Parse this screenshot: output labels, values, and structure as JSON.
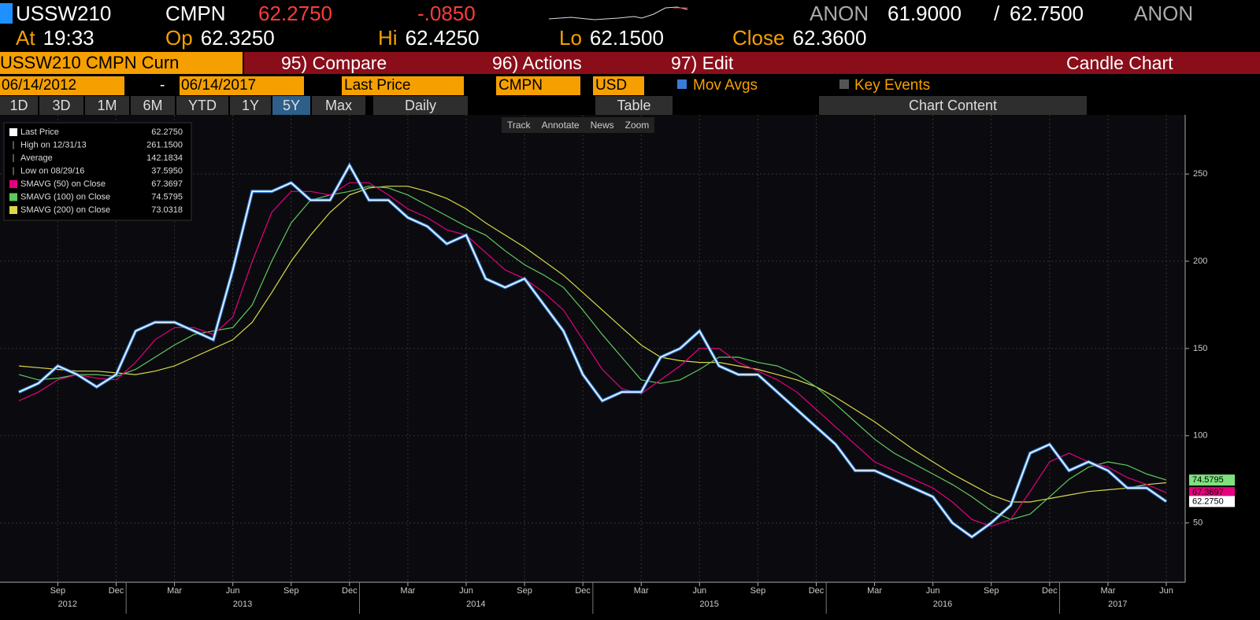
{
  "header": {
    "ticker": "USSW210",
    "source": "CMPN",
    "last": "62.2750",
    "change": "-.0850",
    "bid_source": "ANON",
    "bid": "61.9000",
    "separator": "/",
    "ask": "62.7500",
    "ask_source": "ANON",
    "quote": [
      {
        "label": "At",
        "value": "19:33"
      },
      {
        "label": "Op",
        "value": "62.3250"
      },
      {
        "label": "Hi",
        "value": "62.4250"
      },
      {
        "label": "Lo",
        "value": "62.1500"
      },
      {
        "label": "Close",
        "value": "62.3600"
      }
    ]
  },
  "menu": {
    "security": "USSW210 CMPN Curn",
    "compare": "95) Compare",
    "actions": "96) Actions",
    "edit": "97) Edit",
    "chart_kind": "Candle Chart"
  },
  "controls": {
    "start": "06/14/2012",
    "dash": "-",
    "end": "06/14/2017",
    "field": "Last Price",
    "pricing": "CMPN",
    "currency": "USD",
    "mov_avgs": "Mov Avgs",
    "key_events": "Key Events"
  },
  "periods": {
    "items": [
      "1D",
      "3D",
      "1M",
      "6M",
      "YTD",
      "1Y",
      "5Y",
      "Max"
    ],
    "selected": "5Y",
    "frequency": "Daily",
    "table": "Table",
    "chart_content": "Chart Content"
  },
  "tools": [
    "Track",
    "Annotate",
    "News",
    "Zoom"
  ],
  "chart_data": {
    "type": "line",
    "categories": [
      null,
      null,
      "Sep",
      null,
      null,
      "Dec",
      null,
      null,
      "Mar",
      null,
      null,
      "Jun",
      null,
      null,
      "Sep",
      null,
      null,
      "Dec",
      null,
      null,
      "Mar",
      null,
      null,
      "Jun",
      null,
      null,
      "Sep",
      null,
      null,
      "Dec",
      null,
      null,
      "Mar",
      null,
      null,
      "Jun",
      null,
      null,
      "Sep",
      null,
      null,
      "Dec",
      null,
      null,
      "Mar",
      null,
      null,
      "Jun",
      null,
      null,
      "Sep",
      null,
      null,
      "Dec",
      null,
      null,
      "Mar",
      null,
      null,
      "Jun"
    ],
    "years": [
      "2012",
      "2013",
      "2014",
      "2015",
      "2016",
      "2017"
    ],
    "ylim": [
      16,
      283
    ],
    "yticks": [
      50,
      100,
      150,
      200,
      250
    ],
    "grid": true,
    "series": [
      {
        "name": "Last Price",
        "color": "#ffffff",
        "last_label": "62.2750",
        "values": [
          125,
          130,
          140,
          135,
          128,
          135,
          160,
          165,
          165,
          160,
          155,
          195,
          240,
          240,
          245,
          235,
          235,
          255,
          235,
          235,
          225,
          220,
          210,
          215,
          190,
          185,
          190,
          175,
          160,
          135,
          120,
          125,
          125,
          145,
          150,
          160,
          140,
          135,
          135,
          125,
          115,
          105,
          95,
          80,
          80,
          75,
          70,
          65,
          50,
          42,
          50,
          60,
          90,
          95,
          80,
          85,
          80,
          70,
          70,
          62.275
        ]
      },
      {
        "name": "SMAVG (50) on Close",
        "color": "#e6007e",
        "last_label": "67.3697",
        "values": [
          120,
          125,
          132,
          135,
          133,
          132,
          142,
          155,
          162,
          162,
          158,
          168,
          200,
          228,
          240,
          240,
          238,
          245,
          245,
          238,
          230,
          225,
          218,
          215,
          205,
          195,
          190,
          182,
          172,
          155,
          138,
          127,
          124,
          132,
          140,
          150,
          150,
          142,
          137,
          132,
          125,
          115,
          105,
          95,
          85,
          80,
          75,
          70,
          62,
          52,
          48,
          52,
          68,
          85,
          90,
          85,
          82,
          76,
          72,
          67.3697
        ]
      },
      {
        "name": "SMAVG (100) on Close",
        "color": "#5fc85f",
        "last_label": "74.5795",
        "values": [
          135,
          132,
          133,
          135,
          135,
          134,
          138,
          145,
          152,
          158,
          160,
          162,
          175,
          200,
          222,
          235,
          238,
          240,
          243,
          242,
          238,
          232,
          226,
          220,
          215,
          206,
          198,
          192,
          185,
          172,
          158,
          145,
          132,
          130,
          132,
          138,
          145,
          145,
          142,
          140,
          135,
          128,
          118,
          108,
          98,
          90,
          84,
          78,
          72,
          65,
          57,
          52,
          55,
          65,
          75,
          82,
          85,
          83,
          78,
          74.5795
        ]
      },
      {
        "name": "SMAVG (200) on Close",
        "color": "#d8d84a",
        "last_label": "73.0318",
        "values": [
          140,
          139,
          138,
          137,
          137,
          136,
          135,
          137,
          140,
          145,
          150,
          155,
          165,
          182,
          200,
          215,
          228,
          238,
          242,
          243,
          243,
          240,
          236,
          230,
          222,
          215,
          208,
          200,
          192,
          182,
          172,
          162,
          152,
          145,
          143,
          142,
          142,
          140,
          138,
          135,
          132,
          128,
          122,
          115,
          108,
          100,
          92,
          85,
          78,
          72,
          66,
          62,
          62,
          64,
          66,
          68,
          69,
          70,
          72,
          73.0318
        ]
      }
    ],
    "stats": [
      {
        "label": "High on 12/31/13",
        "value": "261.1500"
      },
      {
        "label": "Average",
        "value": "142.1834"
      },
      {
        "label": "Low on 08/29/16",
        "value": "37.5950"
      }
    ]
  }
}
